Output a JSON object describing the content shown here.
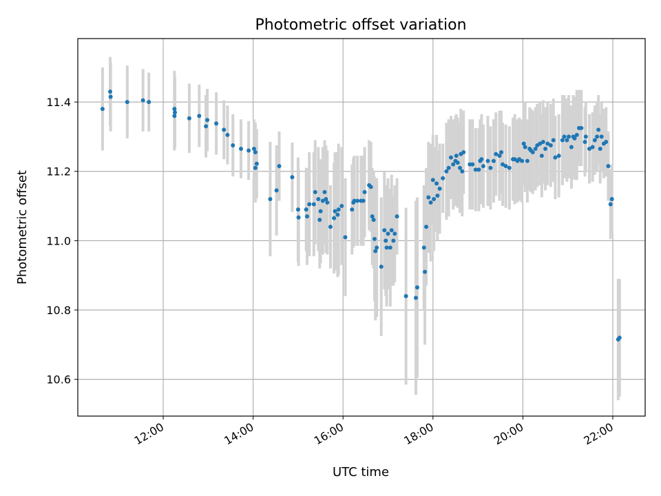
{
  "chart_data": {
    "type": "scatter",
    "title": "Photometric offset variation",
    "xlabel": "UTC time",
    "ylabel": "Photometric offset",
    "x_unit": "hours (UTC)",
    "xlim": [
      10.1,
      22.72
    ],
    "ylim": [
      10.494,
      11.583
    ],
    "x_ticks": [
      {
        "value": 12,
        "label": "12:00"
      },
      {
        "value": 14,
        "label": "14:00"
      },
      {
        "value": 16,
        "label": "16:00"
      },
      {
        "value": 18,
        "label": "18:00"
      },
      {
        "value": 20,
        "label": "20:00"
      },
      {
        "value": 22,
        "label": "22:00"
      }
    ],
    "y_ticks": [
      {
        "value": 10.6,
        "label": "10.6"
      },
      {
        "value": 10.8,
        "label": "10.8"
      },
      {
        "value": 11.0,
        "label": "11.0"
      },
      {
        "value": 11.2,
        "label": "11.2"
      },
      {
        "value": 11.4,
        "label": "11.4"
      }
    ],
    "grid": true,
    "colors": {
      "points": "#1f77b4",
      "errorbars": "#d3d3d3",
      "grid": "#b0b0b0"
    },
    "points": [
      [
        10.65,
        11.38,
        0.12
      ],
      [
        10.82,
        11.43,
        0.1
      ],
      [
        10.83,
        11.415,
        0.1
      ],
      [
        11.2,
        11.4,
        0.105
      ],
      [
        11.55,
        11.405,
        0.09
      ],
      [
        11.68,
        11.4,
        0.085
      ],
      [
        12.25,
        11.38,
        0.11
      ],
      [
        12.26,
        11.37,
        0.1
      ],
      [
        12.25,
        11.36,
        0.1
      ],
      [
        12.58,
        11.353,
        0.1
      ],
      [
        12.8,
        11.36,
        0.09
      ],
      [
        12.95,
        11.33,
        0.09
      ],
      [
        12.98,
        11.348,
        0.09
      ],
      [
        13.18,
        11.338,
        0.09
      ],
      [
        13.35,
        11.32,
        0.085
      ],
      [
        13.43,
        11.305,
        0.085
      ],
      [
        13.55,
        11.275,
        0.09
      ],
      [
        13.73,
        11.265,
        0.085
      ],
      [
        13.9,
        11.26,
        0.085
      ],
      [
        14.02,
        11.265,
        0.085
      ],
      [
        14.05,
        11.255,
        0.085
      ],
      [
        14.05,
        11.21,
        0.1
      ],
      [
        14.08,
        11.222,
        0.1
      ],
      [
        14.38,
        11.12,
        0.165
      ],
      [
        14.52,
        11.145,
        0.13
      ],
      [
        14.58,
        11.215,
        0.1
      ],
      [
        14.87,
        11.183,
        0.1
      ],
      [
        15.0,
        11.09,
        0.15
      ],
      [
        15.01,
        11.067,
        0.14
      ],
      [
        15.18,
        11.09,
        0.12
      ],
      [
        15.2,
        11.07,
        0.14
      ],
      [
        15.25,
        11.105,
        0.15
      ],
      [
        15.35,
        11.105,
        0.15
      ],
      [
        15.38,
        11.14,
        0.15
      ],
      [
        15.45,
        11.12,
        0.15
      ],
      [
        15.48,
        11.06,
        0.14
      ],
      [
        15.5,
        11.085,
        0.15
      ],
      [
        15.55,
        11.115,
        0.155
      ],
      [
        15.59,
        11.14,
        0.15
      ],
      [
        15.62,
        11.12,
        0.155
      ],
      [
        15.65,
        11.11,
        0.15
      ],
      [
        15.72,
        11.04,
        0.12
      ],
      [
        15.8,
        11.065,
        0.16
      ],
      [
        15.82,
        11.085,
        0.17
      ],
      [
        15.88,
        11.075,
        0.18
      ],
      [
        15.9,
        11.09,
        0.19
      ],
      [
        15.97,
        11.1,
        0.17
      ],
      [
        16.05,
        11.01,
        0.17
      ],
      [
        16.2,
        11.09,
        0.13
      ],
      [
        16.23,
        11.11,
        0.13
      ],
      [
        16.25,
        11.115,
        0.13
      ],
      [
        16.32,
        11.115,
        0.13
      ],
      [
        16.4,
        11.115,
        0.13
      ],
      [
        16.45,
        11.115,
        0.13
      ],
      [
        16.48,
        11.14,
        0.13
      ],
      [
        16.58,
        11.16,
        0.13
      ],
      [
        16.62,
        11.155,
        0.13
      ],
      [
        16.65,
        11.07,
        0.14
      ],
      [
        16.68,
        11.06,
        0.14
      ],
      [
        16.7,
        11.005,
        0.18
      ],
      [
        16.72,
        10.97,
        0.2
      ],
      [
        16.75,
        10.98,
        0.2
      ],
      [
        16.85,
        10.925,
        0.2
      ],
      [
        16.92,
        11.03,
        0.17
      ],
      [
        16.95,
        11.0,
        0.16
      ],
      [
        16.97,
        10.98,
        0.17
      ],
      [
        17.0,
        11.02,
        0.16
      ],
      [
        17.05,
        10.98,
        0.17
      ],
      [
        17.08,
        11.03,
        0.16
      ],
      [
        17.12,
        11.0,
        0.13
      ],
      [
        17.15,
        11.02,
        0.14
      ],
      [
        17.2,
        11.07,
        0.11
      ],
      [
        17.4,
        10.84,
        0.255
      ],
      [
        17.62,
        10.835,
        0.28
      ],
      [
        17.65,
        10.865,
        0.26
      ],
      [
        17.8,
        10.98,
        0.18
      ],
      [
        17.82,
        10.91,
        0.21
      ],
      [
        17.85,
        11.04,
        0.17
      ],
      [
        17.9,
        11.125,
        0.16
      ],
      [
        17.95,
        11.11,
        0.17
      ],
      [
        18.0,
        11.175,
        0.13
      ],
      [
        18.02,
        11.12,
        0.15
      ],
      [
        18.08,
        11.165,
        0.14
      ],
      [
        18.1,
        11.13,
        0.13
      ],
      [
        18.15,
        11.15,
        0.13
      ],
      [
        18.22,
        11.18,
        0.1
      ],
      [
        18.3,
        11.2,
        0.14
      ],
      [
        18.35,
        11.21,
        0.14
      ],
      [
        18.4,
        11.24,
        0.12
      ],
      [
        18.45,
        11.22,
        0.13
      ],
      [
        18.5,
        11.23,
        0.13
      ],
      [
        18.52,
        11.245,
        0.12
      ],
      [
        18.55,
        11.225,
        0.13
      ],
      [
        18.6,
        11.21,
        0.13
      ],
      [
        18.62,
        11.25,
        0.13
      ],
      [
        18.68,
        11.255,
        0.12
      ],
      [
        18.65,
        11.2,
        0.13
      ],
      [
        18.82,
        11.22,
        0.13
      ],
      [
        18.88,
        11.22,
        0.13
      ],
      [
        18.95,
        11.205,
        0.12
      ],
      [
        19.02,
        11.205,
        0.12
      ],
      [
        19.05,
        11.23,
        0.12
      ],
      [
        19.08,
        11.235,
        0.13
      ],
      [
        19.12,
        11.215,
        0.12
      ],
      [
        19.22,
        11.23,
        0.13
      ],
      [
        19.28,
        11.21,
        0.12
      ],
      [
        19.35,
        11.23,
        0.12
      ],
      [
        19.4,
        11.25,
        0.12
      ],
      [
        19.48,
        11.245,
        0.13
      ],
      [
        19.52,
        11.255,
        0.12
      ],
      [
        19.55,
        11.22,
        0.12
      ],
      [
        19.62,
        11.215,
        0.12
      ],
      [
        19.7,
        11.21,
        0.12
      ],
      [
        19.78,
        11.235,
        0.12
      ],
      [
        19.82,
        11.235,
        0.13
      ],
      [
        19.88,
        11.23,
        0.12
      ],
      [
        19.92,
        11.235,
        0.12
      ],
      [
        19.98,
        11.23,
        0.12
      ],
      [
        20.02,
        11.28,
        0.12
      ],
      [
        20.05,
        11.27,
        0.13
      ],
      [
        20.1,
        11.23,
        0.12
      ],
      [
        20.15,
        11.265,
        0.12
      ],
      [
        20.18,
        11.26,
        0.12
      ],
      [
        20.22,
        11.255,
        0.12
      ],
      [
        20.28,
        11.265,
        0.12
      ],
      [
        20.32,
        11.275,
        0.12
      ],
      [
        20.38,
        11.28,
        0.12
      ],
      [
        20.42,
        11.245,
        0.12
      ],
      [
        20.45,
        11.285,
        0.12
      ],
      [
        20.5,
        11.265,
        0.12
      ],
      [
        20.55,
        11.28,
        0.12
      ],
      [
        20.62,
        11.275,
        0.12
      ],
      [
        20.68,
        11.29,
        0.12
      ],
      [
        20.72,
        11.24,
        0.12
      ],
      [
        20.8,
        11.245,
        0.12
      ],
      [
        20.88,
        11.29,
        0.13
      ],
      [
        20.92,
        11.3,
        0.12
      ],
      [
        20.98,
        11.29,
        0.12
      ],
      [
        21.02,
        11.3,
        0.12
      ],
      [
        21.08,
        11.27,
        0.12
      ],
      [
        21.12,
        11.3,
        0.12
      ],
      [
        21.15,
        11.295,
        0.12
      ],
      [
        21.2,
        11.305,
        0.13
      ],
      [
        21.25,
        11.325,
        0.11
      ],
      [
        21.3,
        11.325,
        0.11
      ],
      [
        21.38,
        11.285,
        0.1
      ],
      [
        21.4,
        11.3,
        0.1
      ],
      [
        21.48,
        11.265,
        0.1
      ],
      [
        21.55,
        11.27,
        0.1
      ],
      [
        21.6,
        11.29,
        0.1
      ],
      [
        21.65,
        11.3,
        0.1
      ],
      [
        21.68,
        11.32,
        0.1
      ],
      [
        21.72,
        11.265,
        0.1
      ],
      [
        21.75,
        11.3,
        0.1
      ],
      [
        21.8,
        11.28,
        0.1
      ],
      [
        21.85,
        11.285,
        0.1
      ],
      [
        21.9,
        11.215,
        0.1
      ],
      [
        21.95,
        11.105,
        0.1
      ],
      [
        21.98,
        11.12,
        0.1
      ],
      [
        22.12,
        10.715,
        0.175
      ],
      [
        22.15,
        10.72,
        0.17
      ]
    ]
  }
}
